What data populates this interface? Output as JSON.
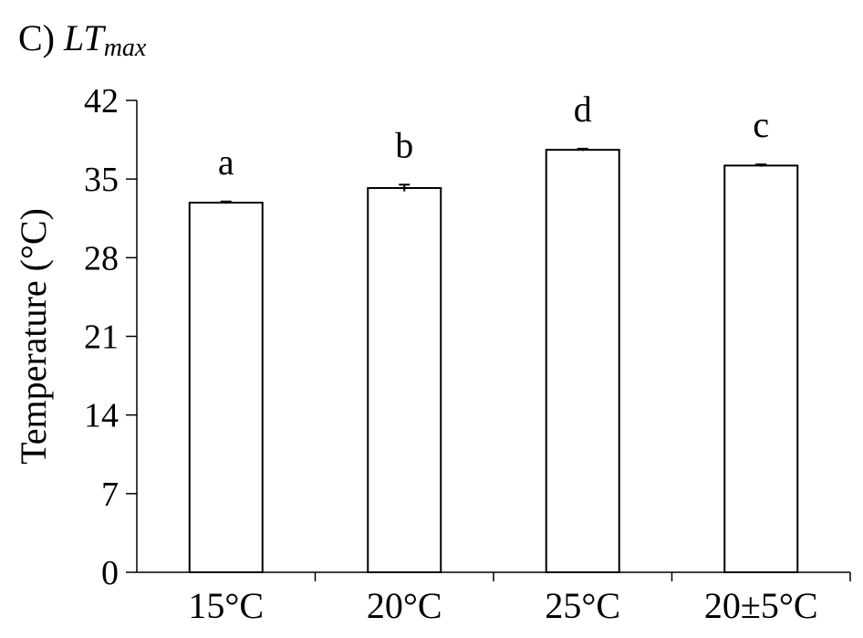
{
  "panel": {
    "letter": "C)",
    "symbol": "LT",
    "subscript": "max"
  },
  "chart_data": {
    "type": "bar",
    "categories": [
      "15°C",
      "20°C",
      "25°C",
      "20±5°C"
    ],
    "values": [
      32.9,
      34.2,
      37.6,
      36.2
    ],
    "errors": [
      0.1,
      0.3,
      0.1,
      0.1
    ],
    "significance_labels": [
      "a",
      "b",
      "d",
      "c"
    ],
    "ylabel": "Temperature (°C)",
    "xlabel": "",
    "ylim": [
      0,
      42
    ],
    "yticks": [
      0,
      7,
      14,
      21,
      28,
      35,
      42
    ],
    "grid": false,
    "bar_fill": "#ffffff",
    "bar_stroke": "#000000"
  }
}
